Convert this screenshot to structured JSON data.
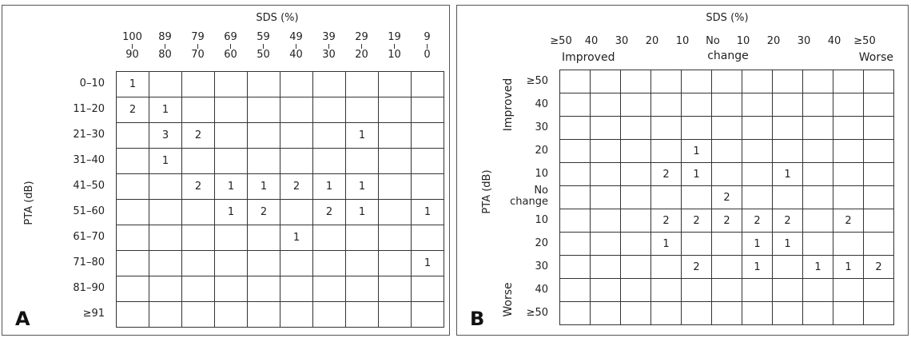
{
  "panel_a": {
    "letter": "A",
    "x_title": "SDS (%)",
    "y_title": "PTA (dB)",
    "col_heads": [
      {
        "top": "100",
        "bottom": "90"
      },
      {
        "top": "89",
        "bottom": "80"
      },
      {
        "top": "79",
        "bottom": "70"
      },
      {
        "top": "69",
        "bottom": "60"
      },
      {
        "top": "59",
        "bottom": "50"
      },
      {
        "top": "49",
        "bottom": "40"
      },
      {
        "top": "39",
        "bottom": "30"
      },
      {
        "top": "29",
        "bottom": "20"
      },
      {
        "top": "19",
        "bottom": "10"
      },
      {
        "top": "9",
        "bottom": "0"
      }
    ],
    "row_labels": [
      "0–10",
      "11–20",
      "21–30",
      "31–40",
      "41–50",
      "51–60",
      "61–70",
      "71–80",
      "81–90",
      "≥91"
    ],
    "cells": [
      [
        "1",
        "",
        "",
        "",
        "",
        "",
        "",
        "",
        "",
        ""
      ],
      [
        "2",
        "1",
        "",
        "",
        "",
        "",
        "",
        "",
        "",
        ""
      ],
      [
        "",
        "3",
        "2",
        "",
        "",
        "",
        "",
        "1",
        "",
        ""
      ],
      [
        "",
        "1",
        "",
        "",
        "",
        "",
        "",
        "",
        "",
        ""
      ],
      [
        "",
        "",
        "2",
        "1",
        "1",
        "2",
        "1",
        "1",
        "",
        ""
      ],
      [
        "",
        "",
        "",
        "1",
        "2",
        "",
        "2",
        "1",
        "",
        "1"
      ],
      [
        "",
        "",
        "",
        "",
        "",
        "1",
        "",
        "",
        "",
        ""
      ],
      [
        "",
        "",
        "",
        "",
        "",
        "",
        "",
        "",
        "",
        "1"
      ],
      [
        "",
        "",
        "",
        "",
        "",
        "",
        "",
        "",
        "",
        ""
      ],
      [
        "",
        "",
        "",
        "",
        "",
        "",
        "",
        "",
        "",
        ""
      ]
    ]
  },
  "panel_b": {
    "letter": "B",
    "x_title": "SDS (%)",
    "y_title": "PTA (dB)",
    "col_heads": [
      "≥50",
      "40",
      "30",
      "20",
      "10",
      "No",
      "10",
      "20",
      "30",
      "40",
      "≥50"
    ],
    "x_group_left": "Improved",
    "x_group_mid": "change",
    "x_group_right": "Worse",
    "y_group_top": "Improved",
    "y_group_bottom": "Worse",
    "row_labels": [
      "≥50",
      "40",
      "30",
      "20",
      "10",
      "No",
      "10",
      "20",
      "30",
      "40",
      "≥50"
    ],
    "row_no_change_second": "change",
    "cells": [
      [
        "",
        "",
        "",
        "",
        "",
        "",
        "",
        "",
        "",
        "",
        ""
      ],
      [
        "",
        "",
        "",
        "",
        "",
        "",
        "",
        "",
        "",
        "",
        ""
      ],
      [
        "",
        "",
        "",
        "",
        "",
        "",
        "",
        "",
        "",
        "",
        ""
      ],
      [
        "",
        "",
        "",
        "",
        "1",
        "",
        "",
        "",
        "",
        "",
        ""
      ],
      [
        "",
        "",
        "",
        "2",
        "1",
        "",
        "",
        "1",
        "",
        "",
        ""
      ],
      [
        "",
        "",
        "",
        "",
        "",
        "2",
        "",
        "",
        "",
        "",
        ""
      ],
      [
        "",
        "",
        "",
        "2",
        "2",
        "2",
        "2",
        "2",
        "",
        "2",
        ""
      ],
      [
        "",
        "",
        "",
        "1",
        "",
        "",
        "1",
        "1",
        "",
        "",
        ""
      ],
      [
        "",
        "",
        "",
        "",
        "2",
        "",
        "1",
        "",
        "1",
        "1",
        "2"
      ],
      [
        "",
        "",
        "",
        "",
        "",
        "",
        "",
        "",
        "",
        "",
        ""
      ],
      [
        "",
        "",
        "",
        "",
        "",
        "",
        "",
        "",
        "",
        "",
        ""
      ]
    ]
  }
}
